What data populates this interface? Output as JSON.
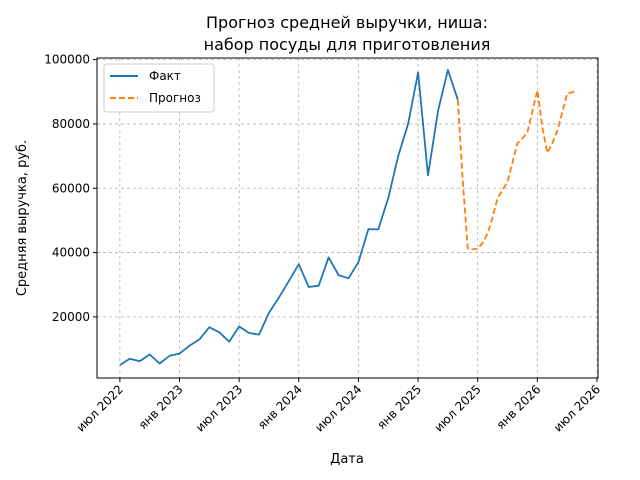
{
  "chart_data": {
    "type": "line",
    "title_line1": "Прогноз средней выручки, ниша:",
    "title_line2": "набор посуды для приготовления",
    "xlabel": "Дата",
    "ylabel": "Средняя выручка, руб.",
    "x_ticks": [
      "июл 2022",
      "янв 2023",
      "июл 2023",
      "янв 2024",
      "июл 2024",
      "янв 2025",
      "июл 2025",
      "янв 2026",
      "июл 2026"
    ],
    "x_tick_months": [
      0,
      6,
      12,
      18,
      24,
      30,
      36,
      42,
      48
    ],
    "x_start_label": "июл 2022",
    "y_ticks": [
      20000,
      40000,
      60000,
      80000,
      100000
    ],
    "y_tick_labels": [
      "20000",
      "40000",
      "60000",
      "80000",
      "100000"
    ],
    "xlim": [
      -2.3,
      48.1
    ],
    "ylim": [
      1000,
      100500
    ],
    "grid": true,
    "legend_position": "top-left",
    "colors": {
      "fact": "#1f77b4",
      "forecast": "#ff7f0e",
      "grid": "#b0b0b0"
    },
    "series": [
      {
        "name": "Факт",
        "style": "solid",
        "x": [
          0,
          1,
          2,
          3,
          4,
          5,
          6,
          7,
          8,
          9,
          10,
          11,
          12,
          13,
          14,
          15,
          16,
          17,
          18,
          19,
          20,
          21,
          22,
          23,
          24,
          25,
          26,
          27,
          28,
          29,
          30,
          31,
          32,
          33,
          34
        ],
        "values": [
          5000,
          7000,
          6200,
          8300,
          5500,
          7900,
          8600,
          11000,
          13000,
          16800,
          15200,
          12300,
          17000,
          15000,
          14500,
          21300,
          26000,
          31200,
          36400,
          29300,
          29700,
          38500,
          33000,
          32000,
          37000,
          47300,
          47200,
          57000,
          70000,
          80000,
          96000,
          64000,
          84000,
          96800,
          87500
        ]
      },
      {
        "name": "Прогноз",
        "style": "dashed",
        "x": [
          34,
          34.5,
          35,
          35.5,
          36,
          36.5,
          37,
          37.5,
          38,
          38.5,
          39,
          39.5,
          40,
          40.5,
          41,
          41.5,
          42,
          42.5,
          43,
          43.5,
          44,
          44.5,
          45,
          45.5,
          46
        ],
        "values": [
          87500,
          62000,
          41200,
          41000,
          41200,
          43000,
          46000,
          51000,
          57000,
          59500,
          62000,
          68000,
          74000,
          75500,
          77500,
          84000,
          90500,
          79000,
          71000,
          74000,
          77800,
          83500,
          89500,
          89800,
          90500
        ]
      }
    ]
  }
}
